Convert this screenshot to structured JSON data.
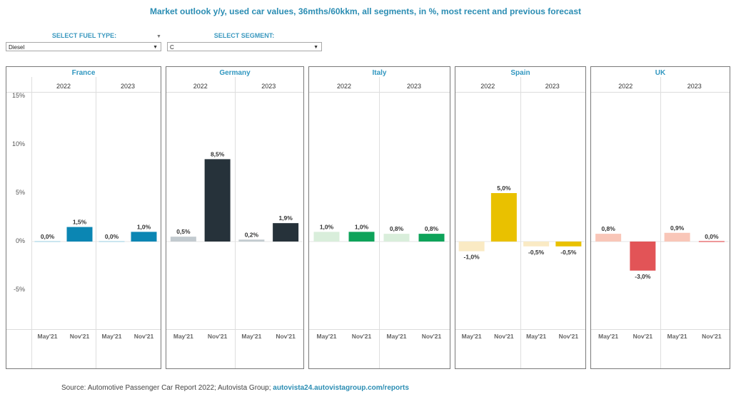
{
  "header": {
    "title": "Market outlook y/y, used car values, 36mths/60kkm, all segments, in %, most recent and previous forecast"
  },
  "filters": {
    "fuel": {
      "label": "SELECT FUEL TYPE:",
      "value": "Diesel",
      "arrow": "▼"
    },
    "segment": {
      "label": "SELECT SEGMENT:",
      "value": "C",
      "arrow": "▼"
    },
    "extra_arrow": "▼"
  },
  "source": {
    "text": "Source: Automotive Passenger Car Report 2022; Autovista Group; ",
    "link": "autovista24.autovistagroup.com/reports"
  },
  "chart_data": {
    "type": "bar",
    "title": "Market outlook y/y, used car values, 36mths/60kkm, all segments, in %, most recent and previous forecast",
    "ylabel": "",
    "ylim": [
      -9.2,
      15
    ],
    "yticks": [
      15,
      10,
      5,
      0,
      -5
    ],
    "ytick_labels": [
      "15%",
      "10%",
      "5%",
      "0%",
      "-5%"
    ],
    "years": [
      "2022",
      "2023"
    ],
    "forecasts": [
      "May'21",
      "Nov'21"
    ],
    "grid": false,
    "legend": "none",
    "panels": [
      {
        "country": "France",
        "colors": {
          "light": "#a8d4e6",
          "dark": "#0b86b3"
        },
        "values": {
          "2022": [
            0.0,
            1.5
          ],
          "2023": [
            0.0,
            1.0
          ]
        },
        "labels": {
          "2022": [
            "0,0%",
            "1,5%"
          ],
          "2023": [
            "0,0%",
            "1,0%"
          ]
        }
      },
      {
        "country": "Germany",
        "colors": {
          "light": "#c2cacf",
          "dark": "#26323a"
        },
        "values": {
          "2022": [
            0.5,
            8.5
          ],
          "2023": [
            0.2,
            1.9
          ]
        },
        "labels": {
          "2022": [
            "0,5%",
            "8,5%"
          ],
          "2023": [
            "0,2%",
            "1,9%"
          ]
        }
      },
      {
        "country": "Italy",
        "colors": {
          "light": "#d9eedb",
          "dark": "#0ea35a"
        },
        "values": {
          "2022": [
            1.0,
            1.0
          ],
          "2023": [
            0.8,
            0.8
          ]
        },
        "labels": {
          "2022": [
            "1,0%",
            "1,0%"
          ],
          "2023": [
            "0,8%",
            "0,8%"
          ]
        }
      },
      {
        "country": "Spain",
        "colors": {
          "light": "#faeac4",
          "dark": "#e9c100"
        },
        "values": {
          "2022": [
            -1.0,
            5.0
          ],
          "2023": [
            -0.5,
            -0.5
          ]
        },
        "labels": {
          "2022": [
            "-1,0%",
            "5,0%"
          ],
          "2023": [
            "-0,5%",
            "-0,5%"
          ]
        }
      },
      {
        "country": "UK",
        "colors": {
          "light": "#f9c6b8",
          "dark": "#e25457"
        },
        "values": {
          "2022": [
            0.8,
            -3.0
          ],
          "2023": [
            0.9,
            0.0
          ]
        },
        "labels": {
          "2022": [
            "0,8%",
            "-3,0%"
          ],
          "2023": [
            "0,9%",
            "0,0%"
          ]
        }
      }
    ]
  }
}
